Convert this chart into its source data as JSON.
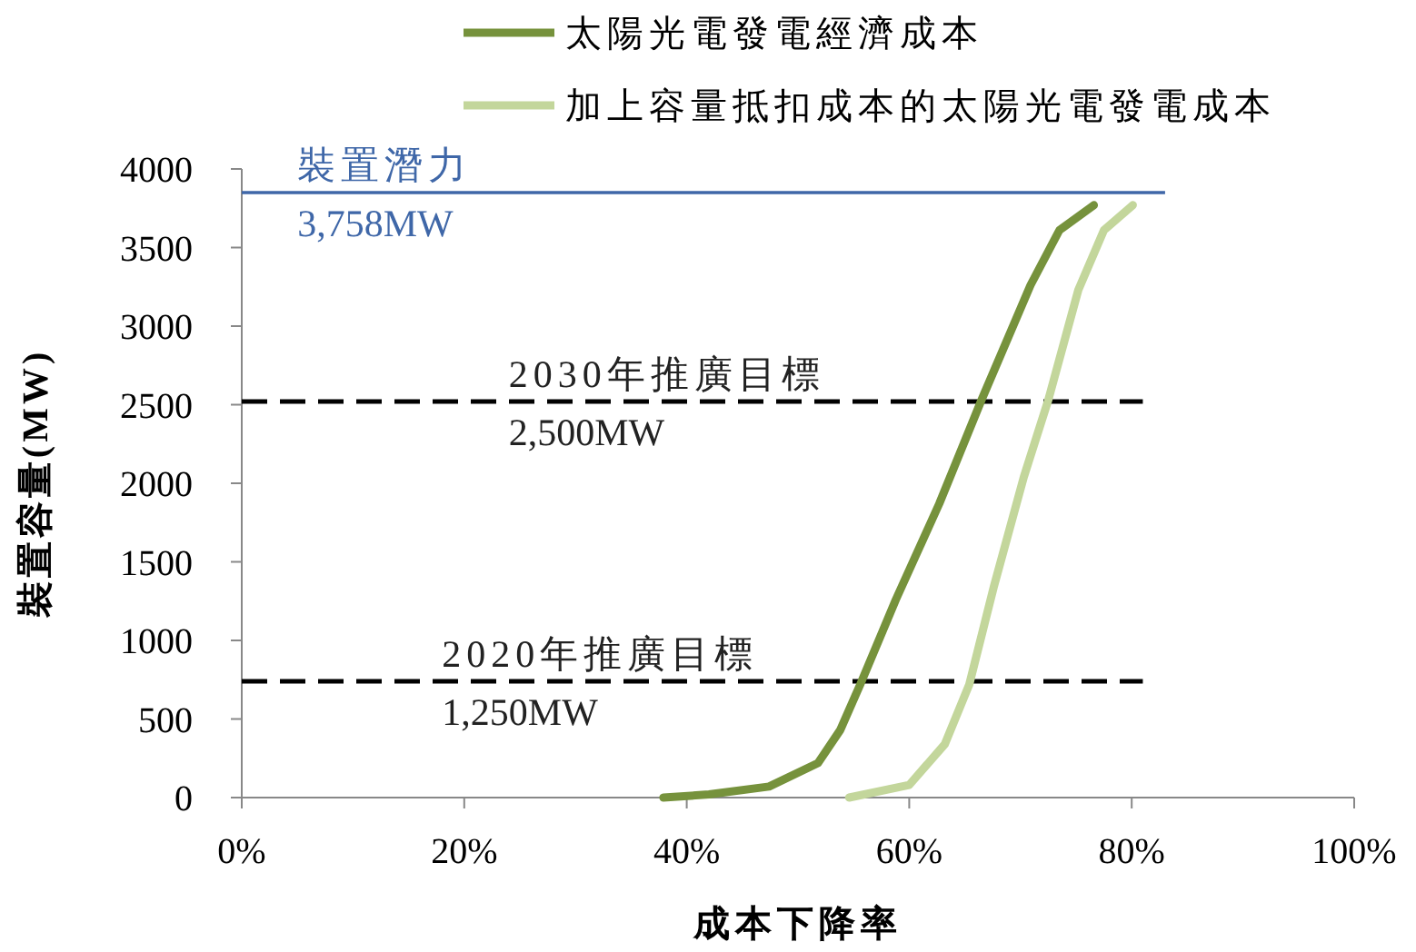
{
  "chart_data": {
    "type": "line",
    "xlabel": "成本下降率",
    "ylabel": "裝置容量(MW)",
    "xlim": [
      0,
      100
    ],
    "ylim": [
      0,
      4000
    ],
    "xticks": [
      {
        "value": 0,
        "label": "0%"
      },
      {
        "value": 20,
        "label": "20%"
      },
      {
        "value": 40,
        "label": "40%"
      },
      {
        "value": 60,
        "label": "60%"
      },
      {
        "value": 80,
        "label": "80%"
      },
      {
        "value": 100,
        "label": "100%"
      }
    ],
    "yticks": [
      0,
      500,
      1000,
      1500,
      2000,
      2500,
      3000,
      3500,
      4000
    ],
    "legend": "top",
    "grid": false,
    "marker": "none",
    "line_style": "solid",
    "series": [
      {
        "name": "太陽光電發電經濟成本",
        "color": "#76923c",
        "x": [
          37.9,
          42,
          47.4,
          51.8,
          53.8,
          55.6,
          58.8,
          62.7,
          66.5,
          70.9,
          73.5,
          76.6
        ],
        "values": [
          0,
          20,
          70,
          220,
          430,
          720,
          1260,
          1870,
          2530,
          3260,
          3610,
          3770
        ]
      },
      {
        "name": "加上容量抵扣成本的太陽光電發電成本",
        "color": "#c3d69b",
        "x": [
          54.6,
          60,
          63.2,
          65.4,
          67.6,
          70.3,
          72.5,
          75.2,
          77.5,
          80.1
        ],
        "values": [
          0,
          80,
          340,
          720,
          1340,
          2040,
          2530,
          3230,
          3610,
          3770
        ]
      }
    ],
    "ref_lines": [
      {
        "axis": "y",
        "value": 3850,
        "label": "裝置潛力",
        "color": "#3f67a8",
        "line_style": "solid"
      },
      {
        "axis": "y",
        "value": 2520,
        "label": "2030年推廣目標",
        "color": "#000000",
        "line_style": "dashed"
      },
      {
        "axis": "y",
        "value": 740,
        "label": "2020年推廣目標",
        "color": "#000000",
        "line_style": "dashed"
      }
    ],
    "annotations": [
      {
        "text": "3,758MW",
        "x": 5,
        "y": 3850
      },
      {
        "text": "2,500MW",
        "x": 24,
        "y": 2520
      },
      {
        "text": "1,250MW",
        "x": 18,
        "y": 740
      }
    ]
  }
}
